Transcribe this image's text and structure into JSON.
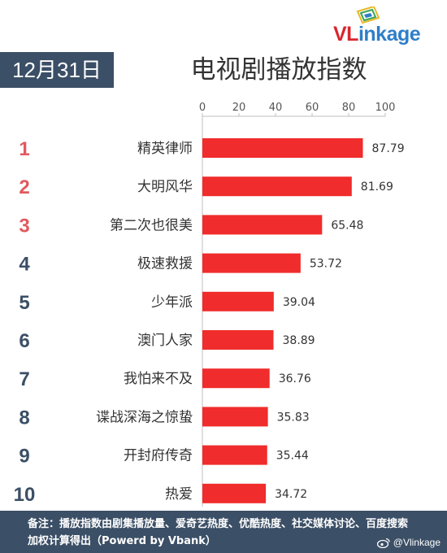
{
  "brand": {
    "logo_prefix": "VL",
    "logo_suffix": "inkage",
    "accent": "#d9262e",
    "secondary": "#2e7ec8"
  },
  "date_label": "12月31日",
  "colors": {
    "bar": "#f02c2c",
    "rank_top": "#e05a5e",
    "rank_other": "#3b4f66",
    "panel": "#3b4f66"
  },
  "chart_data": {
    "type": "bar",
    "orientation": "horizontal",
    "title": "电视剧播放指数",
    "categories": [
      "精英律师",
      "大明风华",
      "第二次也很美",
      "极速救援",
      "少年派",
      "澳门人家",
      "我怕来不及",
      "谍战深海之惊蛰",
      "开封府传奇",
      "热爱"
    ],
    "ranks": [
      "1",
      "2",
      "3",
      "4",
      "5",
      "6",
      "7",
      "8",
      "9",
      "10"
    ],
    "values": [
      87.79,
      81.69,
      65.48,
      53.72,
      39.04,
      38.89,
      36.76,
      35.83,
      35.44,
      34.72
    ],
    "value_labels": [
      "87.79",
      "81.69",
      "65.48",
      "53.72",
      "39.04",
      "38.89",
      "36.76",
      "35.83",
      "35.44",
      "34.72"
    ],
    "xlim": [
      0,
      100
    ],
    "xticks": [
      0,
      20,
      40,
      60,
      80,
      100
    ],
    "axis_position": "top",
    "grid": false
  },
  "footer": {
    "note": "备注：播放指数由剧集播放量、爱奇艺热度、优酷热度、社交媒体讨论、百度搜索加权计算得出（Powerd by Vbank）",
    "watermark": "@Vlinkage"
  }
}
